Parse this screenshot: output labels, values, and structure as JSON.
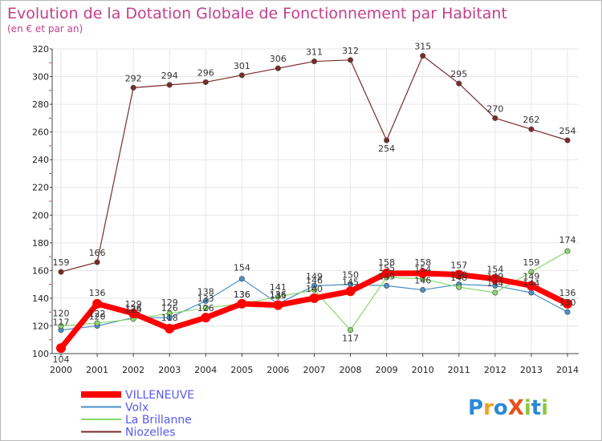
{
  "title": "Evolution de la Dotation Globale de Fonctionnement par Habitant",
  "subtitle": "(en € et par an)",
  "logo": {
    "text": "ProXiti",
    "letters": [
      "P",
      "r",
      "o",
      "X",
      "i",
      "t",
      "i"
    ]
  },
  "colors": {
    "title": "#c2408a",
    "grid": "#e6e6e6",
    "axis": "#444444",
    "legend_text": "#5a5af0"
  },
  "chart_data": {
    "type": "line",
    "title": "Evolution de la Dotation Globale de Fonctionnement par Habitant",
    "subtitle": "(en € et par an)",
    "xlabel": "",
    "ylabel": "",
    "ylim": [
      100,
      320
    ],
    "yticks": [
      100,
      120,
      140,
      160,
      180,
      200,
      220,
      240,
      260,
      280,
      300,
      320
    ],
    "grid": true,
    "legend": "bottom-left",
    "x": [
      "2000",
      "2001",
      "2002",
      "2003",
      "2004",
      "2005",
      "2006",
      "2007",
      "2008",
      "2009",
      "2010",
      "2011",
      "2012",
      "2013",
      "2014"
    ],
    "series": [
      {
        "name": "Niozelles",
        "color": "#7a2a2a",
        "values": [
          159,
          166,
          292,
          294,
          296,
          301,
          306,
          311,
          312,
          254,
          315,
          295,
          270,
          262,
          254
        ]
      },
      {
        "name": "Volx",
        "color": "#4a90c8",
        "values": [
          117,
          120,
          126,
          126,
          138,
          154,
          136,
          149,
          150,
          149,
          146,
          150,
          149,
          144,
          130
        ]
      },
      {
        "name": "La Brillanne",
        "color": "#88d86a",
        "values": [
          120,
          122,
          125,
          129,
          133,
          136,
          141,
          146,
          117,
          155,
          154,
          148,
          144,
          159,
          174
        ]
      },
      {
        "name": "VILLENEUVE",
        "color": "#ff0000",
        "values": [
          104,
          136,
          129,
          118,
          126,
          136,
          135,
          140,
          145,
          158,
          158,
          157,
          154,
          149,
          136
        ]
      }
    ],
    "data_labels": {
      "Niozelles": [
        "159",
        "166",
        "292",
        "294",
        "296",
        "301",
        "306",
        "311",
        "312",
        "254",
        "315",
        "295",
        "270",
        "262",
        "254"
      ],
      "Volx": [
        "117",
        "120",
        "126",
        "126",
        "138",
        "154",
        "136",
        "149",
        "150",
        "149",
        "146",
        "150",
        "149",
        "144",
        "130"
      ],
      "La Brillanne": [
        "120",
        "122",
        "125",
        "129",
        "133",
        "136",
        "141",
        "146",
        "117",
        "155",
        "154",
        "148",
        "144",
        "159",
        "174"
      ],
      "VILLENEUVE": [
        "104",
        "136",
        "129",
        "118",
        "126",
        "136",
        "135",
        "140",
        "145",
        "158",
        "158",
        "157",
        "154",
        "149",
        "136"
      ]
    }
  },
  "legend_items": [
    {
      "label": "VILLENEUVE",
      "color": "#ff0000"
    },
    {
      "label": "Volx",
      "color": "#4a90c8"
    },
    {
      "label": "La Brillanne",
      "color": "#88d86a"
    },
    {
      "label": "Niozelles",
      "color": "#7a2a2a"
    }
  ]
}
